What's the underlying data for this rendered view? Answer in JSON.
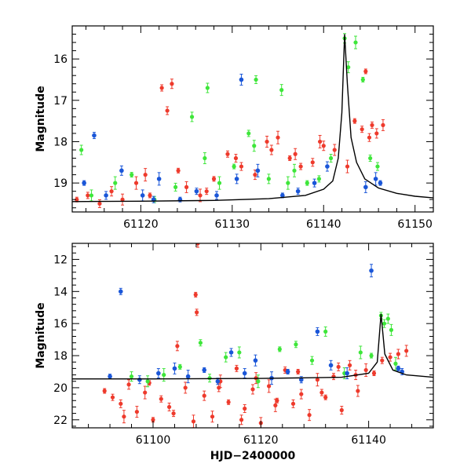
{
  "chart_data": [
    {
      "type": "scatter",
      "panel": "top",
      "title": "",
      "xlabel": "",
      "ylabel": "Magnitude",
      "xlim": [
        61112.5,
        61152
      ],
      "ylim": [
        19.7,
        15.2
      ],
      "y_inverted": true,
      "x_ticks": [
        61120,
        61130,
        61140,
        61150
      ],
      "y_ticks": [
        16,
        17,
        18,
        19
      ],
      "colors": {
        "red": "#ee3a2c",
        "green": "#3ee63a",
        "blue": "#1a56d8",
        "model": "#000000"
      },
      "model_curve": {
        "name": "model",
        "x": [
          61112.5,
          61120,
          61128,
          61134,
          61138,
          61140,
          61141,
          61141.6,
          61142,
          61142.3,
          61142.6,
          61143,
          61143.6,
          61144.5,
          61146,
          61148,
          61150,
          61152
        ],
        "y": [
          19.45,
          19.44,
          19.42,
          19.38,
          19.3,
          19.15,
          18.95,
          18.4,
          17.3,
          15.4,
          16.6,
          17.9,
          18.5,
          18.9,
          19.12,
          19.25,
          19.32,
          19.36
        ]
      },
      "series": [
        {
          "name": "red",
          "x": [
            61113.0,
            61114.2,
            61115.5,
            61116.8,
            61118.0,
            61119.5,
            61121.0,
            61122.3,
            61122.9,
            61123.4,
            61125.0,
            61126.5,
            61128.0,
            61129.5,
            61131.0,
            61132.5,
            61133.8,
            61135.0,
            61136.3,
            61137.5,
            61138.8,
            61140.0,
            61141.2,
            61142.6,
            61143.4,
            61144.2,
            61145.0,
            61145.8,
            61146.5,
            61120.5,
            61124.1,
            61127.2,
            61130.4,
            61134.3,
            61136.9,
            61139.6,
            61144.6,
            61145.3
          ],
          "y": [
            19.4,
            19.3,
            19.5,
            19.2,
            19.4,
            19.0,
            19.3,
            16.7,
            17.25,
            16.6,
            19.1,
            19.3,
            18.9,
            18.3,
            18.6,
            18.8,
            18.0,
            17.9,
            18.4,
            18.6,
            18.5,
            18.1,
            18.2,
            18.6,
            17.5,
            17.7,
            17.9,
            17.8,
            17.6,
            18.8,
            18.7,
            19.2,
            18.4,
            18.2,
            18.3,
            18.0,
            16.3,
            17.6
          ]
        },
        {
          "name": "green",
          "x": [
            61113.5,
            61114.6,
            61117.2,
            61119.0,
            61121.5,
            61123.8,
            61125.6,
            61127.0,
            61128.6,
            61130.2,
            61131.8,
            61132.6,
            61134.0,
            61135.4,
            61136.8,
            61138.2,
            61139.5,
            61140.8,
            61142.3,
            61142.7,
            61143.5,
            61144.3,
            61145.1,
            61145.9,
            61127.3,
            61132.4,
            61136.1
          ],
          "y": [
            18.2,
            19.3,
            19.0,
            18.8,
            19.4,
            19.1,
            17.4,
            18.4,
            19.0,
            18.6,
            17.8,
            16.5,
            18.9,
            16.75,
            18.7,
            19.0,
            18.9,
            18.4,
            15.5,
            16.2,
            15.6,
            16.5,
            18.4,
            18.6,
            16.7,
            18.1,
            19.0
          ]
        },
        {
          "name": "blue",
          "x": [
            61113.8,
            61114.9,
            61116.2,
            61117.9,
            61120.2,
            61122.0,
            61124.3,
            61126.1,
            61128.3,
            61130.5,
            61131.0,
            61132.8,
            61135.5,
            61137.2,
            61139.0,
            61140.4,
            61144.6,
            61145.7,
            61146.2,
            61121.4
          ],
          "y": [
            19.0,
            17.85,
            19.3,
            18.7,
            19.3,
            18.9,
            19.4,
            19.2,
            19.3,
            18.9,
            16.5,
            18.7,
            19.3,
            19.2,
            19.0,
            18.6,
            19.1,
            18.9,
            19.0,
            19.4
          ]
        }
      ]
    },
    {
      "type": "scatter",
      "panel": "bottom",
      "title": "",
      "xlabel": "HJD−2400000",
      "ylabel": "Magnitude",
      "xlim": [
        61085,
        61152
      ],
      "ylim": [
        22.5,
        11.0
      ],
      "y_inverted": true,
      "x_ticks": [
        61100,
        61120,
        61140
      ],
      "y_ticks": [
        12,
        14,
        16,
        18,
        20,
        22
      ],
      "colors": {
        "red": "#ee3a2c",
        "green": "#3ee63a",
        "blue": "#1a56d8",
        "model": "#000000"
      },
      "model_curve": {
        "name": "model",
        "x": [
          61085,
          61100,
          61120,
          61135,
          61140,
          61141.6,
          61142.3,
          61143,
          61144.5,
          61147,
          61152
        ],
        "y": [
          19.45,
          19.45,
          19.42,
          19.35,
          19.1,
          18.4,
          15.4,
          17.9,
          18.9,
          19.2,
          19.35
        ]
      },
      "series": [
        {
          "name": "red",
          "x": [
            61091.0,
            61092.5,
            61094.0,
            61095.5,
            61097.0,
            61098.5,
            61100.0,
            61101.5,
            61103.0,
            61104.5,
            61106.0,
            61107.5,
            61107.9,
            61108.1,
            61108.3,
            61109.5,
            61111.0,
            61112.5,
            61114.0,
            61115.5,
            61117.0,
            61118.5,
            61120.0,
            61121.5,
            61123.0,
            61124.5,
            61126.0,
            61127.5,
            61129.0,
            61130.5,
            61132.0,
            61133.5,
            61135.0,
            61136.5,
            61138.0,
            61139.5,
            61141.0,
            61142.5,
            61144.0,
            61145.5,
            61147.0,
            61094.6,
            61099.3,
            61103.8,
            61112.2,
            61116.4,
            61119.1,
            61122.7,
            61126.9,
            61131.3,
            61134.4,
            61137.6
          ],
          "y": [
            20.2,
            20.6,
            21.0,
            19.8,
            21.5,
            20.3,
            22.0,
            20.7,
            21.2,
            17.4,
            20.0,
            22.1,
            14.2,
            15.3,
            11.0,
            20.5,
            21.8,
            19.6,
            20.9,
            18.8,
            21.3,
            20.1,
            22.2,
            19.9,
            20.8,
            18.9,
            21.0,
            20.4,
            21.7,
            19.5,
            20.6,
            19.3,
            21.4,
            18.6,
            20.2,
            18.9,
            19.1,
            18.3,
            18.1,
            17.9,
            17.7,
            21.8,
            19.7,
            21.6,
            20.0,
            22.0,
            19.4,
            21.1,
            19.0,
            20.3,
            18.7,
            19.2
          ]
        },
        {
          "name": "green",
          "x": [
            61096.0,
            61099.0,
            61102.0,
            61105.0,
            61108.8,
            61110.5,
            61113.5,
            61116.0,
            61119.5,
            61123.5,
            61126.5,
            61129.5,
            61132.0,
            61135.5,
            61138.5,
            61140.5,
            61142.3,
            61142.9,
            61143.6,
            61144.2,
            61145.0
          ],
          "y": [
            19.3,
            19.6,
            19.2,
            18.7,
            17.2,
            19.4,
            18.1,
            17.8,
            19.6,
            17.6,
            17.3,
            18.3,
            16.5,
            19.1,
            17.8,
            18.0,
            15.5,
            16.0,
            15.7,
            16.4,
            18.5
          ]
        },
        {
          "name": "blue",
          "x": [
            61092.0,
            61094.0,
            61097.5,
            61101.0,
            61104.0,
            61106.5,
            61109.5,
            61112.0,
            61114.5,
            61117.0,
            61119.0,
            61122.0,
            61125.0,
            61127.5,
            61130.5,
            61133.0,
            61136.0,
            61140.5,
            61145.5,
            61146.2
          ],
          "y": [
            19.3,
            14.0,
            19.5,
            19.1,
            18.8,
            19.3,
            18.9,
            19.6,
            17.8,
            19.1,
            18.3,
            19.4,
            19.0,
            19.5,
            16.5,
            18.6,
            19.1,
            12.7,
            18.8,
            19.0
          ]
        }
      ]
    }
  ]
}
